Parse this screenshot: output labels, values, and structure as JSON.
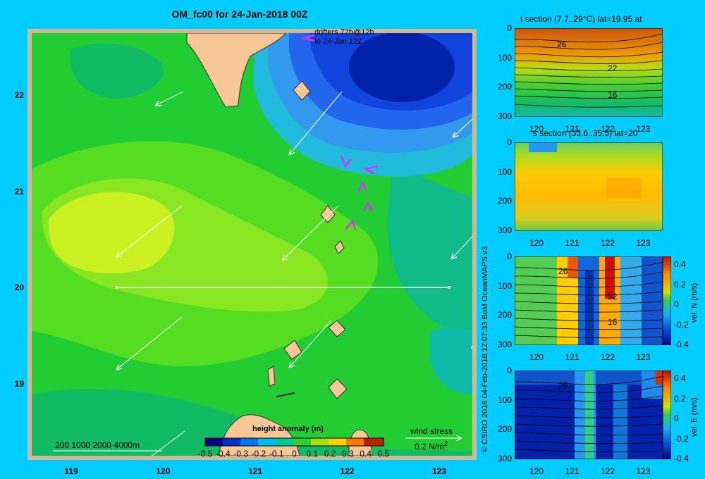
{
  "title": "OM_fc00 for 24-Jan-2018 00Z",
  "map": {
    "lon_ticks": [
      "119",
      "120",
      "121",
      "122",
      "123"
    ],
    "lat_ticks": [
      "22",
      "21",
      "20",
      "19"
    ],
    "drifters_line1": "drifters 72h@12h",
    "drifters_line2": "to 24-Jan 12Z",
    "depth_legend": "200  1000  2000  4000m",
    "wind_label": "wind stress",
    "wind_scale": "0.2 N/m",
    "wind_scale_sup": "2",
    "colorbar_title": "height anomaly (m)",
    "colorbar_ticks": [
      "-0.5",
      "-0.4",
      "-0.3",
      "-0.2",
      "-0.1",
      "0",
      "0.1",
      "0.2",
      "0.3",
      "0.4",
      "0.5"
    ],
    "section_lat": 20,
    "section_lon": [
      119.5,
      123.2
    ]
  },
  "copyright": "© CSIRO 2016   04-Feb-2018 12:07:33 BoM OceanMAPS v3",
  "panels": [
    {
      "title": "t section (7.7..29°C) lat=19.95 at",
      "depth_ticks": [
        "0",
        "100",
        "200",
        "300"
      ],
      "lon_ticks": [
        "120",
        "121",
        "122",
        "123"
      ],
      "contour_labels": [
        "26",
        "22",
        "16"
      ]
    },
    {
      "title": "s section (33.6..35.5) lat=20",
      "depth_ticks": [
        "0",
        "100",
        "200",
        "300"
      ],
      "lon_ticks": [
        "120",
        "121",
        "122",
        "123"
      ]
    },
    {
      "title": "",
      "depth_ticks": [
        "0",
        "100",
        "200",
        "300"
      ],
      "lon_ticks": [
        "120",
        "121",
        "122",
        "123"
      ],
      "contour_labels": [
        "26",
        "22",
        "16"
      ],
      "colorbar_ticks": [
        "0.4",
        "0.2",
        "0",
        "-0.2",
        "-0.4"
      ],
      "colorbar_label": "vel. N (m/s)"
    },
    {
      "title": "",
      "depth_ticks": [
        "0",
        "100",
        "200",
        "300"
      ],
      "lon_ticks": [
        "120",
        "121",
        "122",
        "123"
      ],
      "contour_labels": [
        "26"
      ],
      "colorbar_ticks": [
        "0.4",
        "0.2",
        "0",
        "-0.2",
        "-0.4"
      ],
      "colorbar_label": "vel. E (m/s)"
    }
  ]
}
